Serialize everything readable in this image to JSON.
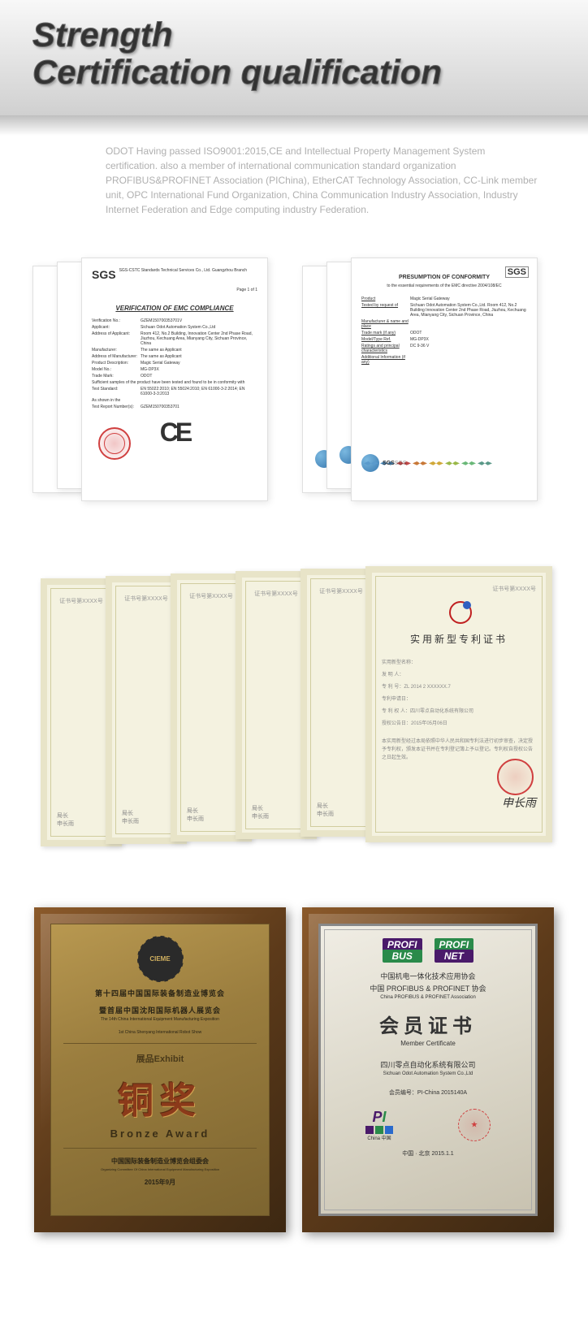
{
  "header": {
    "line1": "Strength",
    "line2": "Certification qualification"
  },
  "description": "ODOT Having passed ISO9001:2015,CE and Intellectual Property Management System certification. also a member of international communication standard organization PROFIBUS&PROFINET Association (PIChina), EtherCAT Technology Association, CC-Link member unit, OPC International Fund Organization, China Communication Industry Association, Industry Internet Federation and Edge computing industry Federation.",
  "sgs_cert": {
    "logo": "SGS",
    "logo_sub": "SGS-CSTC Standards Technical Services Co., Ltd. Guangzhou Branch",
    "page": "Page 1 of 1",
    "title": "VERIFICATION OF EMC COMPLIANCE",
    "fields": {
      "verif_no_label": "Verification No.:",
      "verif_no": "GZEM150700353701V",
      "applicant_label": "Applicant:",
      "applicant": "Sichuan Odot Automation System Co.,Ltd",
      "address_label": "Address of Applicant:",
      "address": "Room 412, No.2 Building, Innovation Center 2nd Phase Road, Jiuzhou, Kechuang Area, Mianyang City, Sichuan Province, China",
      "manufacturer_label": "Manufacturer:",
      "manufacturer": "The same as Applicant",
      "manuf_addr_label": "Address of Manufacturer:",
      "manuf_addr": "The same as Applicant",
      "product_label": "Product Description:",
      "product": "Magic Serial Gateway",
      "model_label": "Model No.:",
      "model": "MG-DP3X",
      "trademark_label": "Trade Mark:",
      "trademark": "ODOT",
      "conformity": "Sufficient samples of the product have been tested and found to be in conformity with",
      "standard_label": "Test Standard:",
      "standards": "EN 55022:2010; EN 55024:2010; EN 61000-3-2:2014; EN 61000-3-3:2013",
      "shown_label": "As shown in the",
      "report_label": "Test Report Number(s):",
      "report": "GZEM150700353701"
    },
    "ce": "CE"
  },
  "conformity_cert": {
    "logo": "SGS",
    "title": "PRESUMPTION OF CONFORMITY",
    "subtitle": "to the essential requirements of the EMC directive 2004/108/EC",
    "fields": {
      "product_label": "Product",
      "product": "Magic Serial Gateway",
      "tested_label": "Tested by request of",
      "tested": "Sichuan Odot Automation System Co.,Ltd. Room 412, No.2 Building Innovation Center 2nd Phase Road, Jiuzhou, Kechuang Area, Mianyang City, Sichuan Province, China",
      "manuf_label": "Manufacturer & name and place",
      "trademark_label": "Trade mark (if any)",
      "trademark": "ODOT",
      "modeltype_label": "Model/Type Ref.",
      "modeltype": "MG-DP3X",
      "ratings_label": "Ratings and principal characteristics",
      "ratings": "DC 9-36 V",
      "addinfo_label": "Additional Information (if any)"
    },
    "bird_colors": [
      "#5a9acc",
      "#4a8abc",
      "#c04848",
      "#c87838",
      "#d0a838",
      "#9ab848",
      "#6ab878",
      "#5a9888"
    ]
  },
  "patent": {
    "header_small": "证书号第XXXX号",
    "title": "实用新型专利证书",
    "fields": [
      "实用新型名称：",
      "发 明 人：",
      "专 利 号：ZL 2014 2 XXXXXX.7",
      "专利申请日：",
      "专 利 权 人：四川零点自动化系统有限公司",
      "授权公告日：2015年05月06日"
    ],
    "body": "本实用新型经过本局依照中华人民共和国专利法进行初步审查，决定授予专利权，颁发本证书并在专利登记簿上予以登记。专利权自授权公告之日起生效。",
    "signature": "申长雨",
    "bottom_left": "局长",
    "bottom_right": "申长雨"
  },
  "bronze_plaque": {
    "cieme": "CIEME",
    "expo_cn1": "第十四届中国国际装备制造业博览会",
    "expo_cn2": "暨首届中国沈阳国际机器人展览会",
    "expo_en1": "The 14th China International Equipment Manufacturing Exposition",
    "expo_en2": "1st China Shenyang International Robot Show",
    "exhibit": "展品Exhibit",
    "award_cn": "铜奖",
    "award_en": "Bronze  Award",
    "org_cn": "中国国际装备制造业博览会组委会",
    "org_en": "Organizing Committee Of China International Equipment Manufacturing Exposition",
    "date": "2015年9月"
  },
  "member_plaque": {
    "profibus": "PROFI",
    "profibus2": "BUS",
    "profinet": "PROFI",
    "profinet2": "NET",
    "assoc_cn1": "中国机电一体化技术应用协会",
    "assoc_cn2": "中国 PROFIBUS & PROFINET 协会",
    "assoc_en": "China PROFIBUS & PROFINET Association",
    "member_cn": "会员证书",
    "member_en": "Member Certificate",
    "company_cn": "四川零点自动化系统有限公司",
    "company_en": "Sichuan Odot Automation System Co.,Ltd",
    "member_no": "会员编号：PI-China 2015140A",
    "pi": "PI",
    "china_jp": "China 中国",
    "place_date": "中国 · 北京   2015.1.1",
    "block_colors": [
      "#4a1a6a",
      "#2a8a4a",
      "#2a6acc"
    ]
  }
}
